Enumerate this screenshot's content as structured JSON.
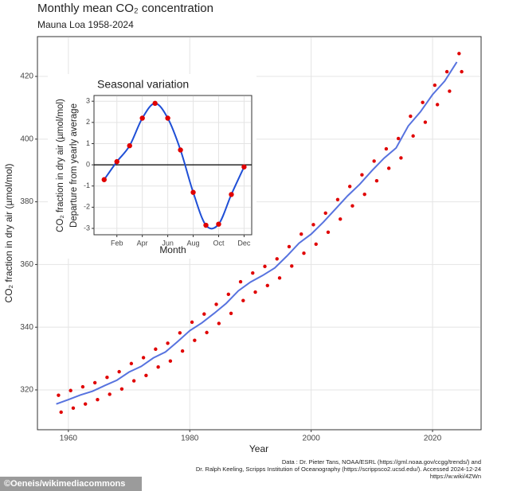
{
  "chart_data": [
    {
      "type": "scatter",
      "title": "Monthly mean CO₂ concentration",
      "subtitle": "Mauna Loa 1958-2024",
      "x_label": "Year",
      "y_label": "CO₂ fraction in dry air (µmol/mol)",
      "xlim": [
        1954.9,
        2028
      ],
      "ylim": [
        307.3,
        432.7
      ],
      "xticks": [
        1960,
        1980,
        2000,
        2020
      ],
      "yticks": [
        320,
        340,
        360,
        380,
        400,
        420
      ],
      "grid": true,
      "series": [
        {
          "mode": "markers",
          "color": "#e00000",
          "x": [
            1958.37,
            1958.8,
            1960.37,
            1960.8,
            1962.37,
            1962.8,
            1964.37,
            1964.8,
            1966.37,
            1966.8,
            1968.37,
            1968.8,
            1970.37,
            1970.8,
            1972.37,
            1972.8,
            1974.37,
            1974.8,
            1976.37,
            1976.8,
            1978.37,
            1978.8,
            1980.37,
            1980.8,
            1982.37,
            1982.8,
            1984.37,
            1984.8,
            1986.37,
            1986.8,
            1988.37,
            1988.8,
            1990.37,
            1990.8,
            1992.37,
            1992.8,
            1994.37,
            1994.8,
            1996.37,
            1996.8,
            1998.37,
            1998.8,
            2000.37,
            2000.8,
            2002.37,
            2002.8,
            2004.37,
            2004.8,
            2006.37,
            2006.8,
            2008.37,
            2008.8,
            2010.37,
            2010.8,
            2012.37,
            2012.8,
            2014.37,
            2014.8,
            2016.37,
            2016.8,
            2018.37,
            2018.8,
            2020.37,
            2020.8,
            2022.37,
            2022.8,
            2024.37,
            2024.8
          ],
          "values": [
            318.3,
            312.9,
            319.8,
            314.2,
            321.0,
            315.5,
            322.3,
            316.9,
            324.0,
            318.6,
            325.8,
            320.3,
            328.4,
            322.9,
            330.3,
            324.6,
            333.0,
            327.3,
            334.9,
            329.2,
            338.2,
            332.4,
            341.6,
            335.8,
            344.2,
            338.3,
            347.3,
            341.2,
            350.5,
            344.4,
            354.5,
            348.5,
            357.3,
            351.2,
            359.4,
            353.3,
            361.8,
            355.7,
            365.7,
            359.5,
            369.7,
            363.6,
            372.7,
            366.5,
            376.4,
            370.3,
            380.7,
            374.5,
            384.9,
            378.7,
            388.6,
            382.4,
            393.0,
            386.7,
            396.9,
            390.7,
            400.2,
            394.0,
            407.3,
            401.0,
            411.7,
            405.4,
            417.2,
            411.0,
            421.5,
            415.3,
            427.3,
            421.5
          ]
        },
        {
          "mode": "line",
          "color": "#3a5bd9",
          "x": [
            1958,
            1960,
            1962,
            1964,
            1966,
            1968,
            1970,
            1972,
            1974,
            1976,
            1978,
            1980,
            1982,
            1984,
            1986,
            1988,
            1990,
            1992,
            1994,
            1996,
            1998,
            2000,
            2002,
            2004,
            2006,
            2008,
            2010,
            2012,
            2014,
            2016,
            2018,
            2020,
            2022,
            2024
          ],
          "values": [
            315.5,
            316.9,
            318.4,
            319.6,
            321.4,
            323.1,
            325.7,
            327.5,
            330.2,
            332.1,
            335.4,
            338.9,
            341.4,
            344.4,
            347.6,
            351.6,
            354.4,
            356.5,
            358.9,
            362.7,
            366.8,
            369.7,
            373.5,
            377.7,
            381.9,
            385.6,
            389.9,
            393.9,
            397.2,
            404.2,
            408.7,
            414.2,
            418.5,
            424.6
          ]
        }
      ],
      "source": [
        "Data : Dr. Pieter Tans, NOAA/ESRL (https://gml.noaa.gov/ccgg/trends/) and",
        "Dr. Ralph Keeling, Scripps Institution of Oceanography (https://scrippsco2.ucsd.edu/). Accessed 2024-12-24",
        "https://w.wiki/4ZWn"
      ],
      "credit": "©Oeneis/wikimediacommons"
    },
    {
      "type": "line",
      "title": "Seasonal variation",
      "x_label": "Month",
      "y_label": [
        "CO₂ fraction in dry air (µmol/mol)",
        "Departure from yearly average"
      ],
      "xlim": [
        0.2,
        12.6
      ],
      "ylim": [
        -3.3,
        3.27
      ],
      "xticks": [
        {
          "value": 2,
          "label": "Feb"
        },
        {
          "value": 4,
          "label": "Apr"
        },
        {
          "value": 6,
          "label": "Jun"
        },
        {
          "value": 8,
          "label": "Aug"
        },
        {
          "value": 10,
          "label": "Oct"
        },
        {
          "value": 12,
          "label": "Dec"
        }
      ],
      "yticks": [
        -3,
        -2,
        -1,
        0,
        1,
        2,
        3
      ],
      "grid": true,
      "hline": 0,
      "x": [
        1,
        2,
        3,
        4,
        5,
        6,
        7,
        8,
        9,
        10,
        11,
        12
      ],
      "values": [
        -0.7,
        0.15,
        0.9,
        2.2,
        2.9,
        2.2,
        0.7,
        -1.3,
        -2.85,
        -2.8,
        -1.4,
        -0.1
      ],
      "line_color": "#1f4fd6",
      "marker_color": "#e00000"
    }
  ]
}
